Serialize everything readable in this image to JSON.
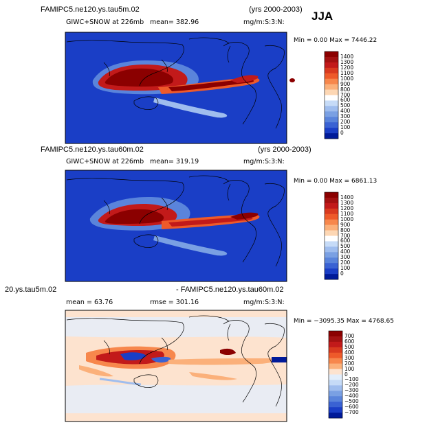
{
  "season": "JJA",
  "chart_data": [
    {
      "type": "heatmap",
      "title": "FAMIPC5.ne120.ys.tau5m.02",
      "years": "(yrs 2000-2003)",
      "variable": "GIWC+SNOW at 226mb",
      "mean": "mean= 382.96",
      "units": "mg/m:S:3:N:",
      "minmax": "Min =    0.00 Max = 7446.22",
      "colorbar": {
        "labels": [
          "1400",
          "1300",
          "1200",
          "1100",
          "1000",
          "900",
          "800",
          "700",
          "600",
          "500",
          "400",
          "300",
          "200",
          "100",
          "0"
        ],
        "colors": [
          "#8b0000",
          "#a31111",
          "#c21a1a",
          "#d93a1f",
          "#ee5a2a",
          "#f7874c",
          "#fbb07a",
          "#fdd7b4",
          "#ffffff",
          "#c6dbf7",
          "#9fbdee",
          "#7aa0e3",
          "#5a84db",
          "#3a62d3",
          "#1a3ec6",
          "#001a99"
        ]
      }
    },
    {
      "type": "heatmap",
      "title": "FAMIPC5.ne120.ys.tau60m.02",
      "years": "(yrs 2000-2003)",
      "variable": "GIWC+SNOW at 226mb",
      "mean": "mean= 319.19",
      "units": "mg/m:S:3:N:",
      "minmax": "Min =    0.00 Max = 6861.13",
      "colorbar": {
        "labels": [
          "1400",
          "1300",
          "1200",
          "1100",
          "1000",
          "900",
          "800",
          "700",
          "600",
          "500",
          "400",
          "300",
          "200",
          "100",
          "0"
        ],
        "colors": [
          "#8b0000",
          "#a31111",
          "#c21a1a",
          "#d93a1f",
          "#ee5a2a",
          "#f7874c",
          "#fbb07a",
          "#fdd7b4",
          "#ffffff",
          "#c6dbf7",
          "#9fbdee",
          "#7aa0e3",
          "#5a84db",
          "#3a62d3",
          "#1a3ec6",
          "#001a99"
        ]
      }
    },
    {
      "type": "heatmap",
      "title_left": "20.ys.tau5m.02",
      "title_right": "- FAMIPC5.ne120.ys.tau60m.02",
      "mean": "mean =  63.76",
      "rmse": "rmse = 301.16",
      "units": "mg/m:S:3:N:",
      "minmax": "Min = −3095.35 Max = 4768.65",
      "colorbar": {
        "labels": [
          "700",
          "600",
          "500",
          "400",
          "300",
          "200",
          "100",
          "0",
          "−100",
          "−200",
          "−300",
          "−400",
          "−500",
          "−600",
          "−700"
        ],
        "colors": [
          "#8b0000",
          "#a31111",
          "#c21a1a",
          "#d93a1f",
          "#ee5a2a",
          "#f7874c",
          "#fbb07a",
          "#fde3cf",
          "#e3eefb",
          "#c6dbf7",
          "#9fbdee",
          "#7aa0e3",
          "#5a84db",
          "#3a62d3",
          "#1a3ec6",
          "#001a99"
        ]
      }
    }
  ]
}
